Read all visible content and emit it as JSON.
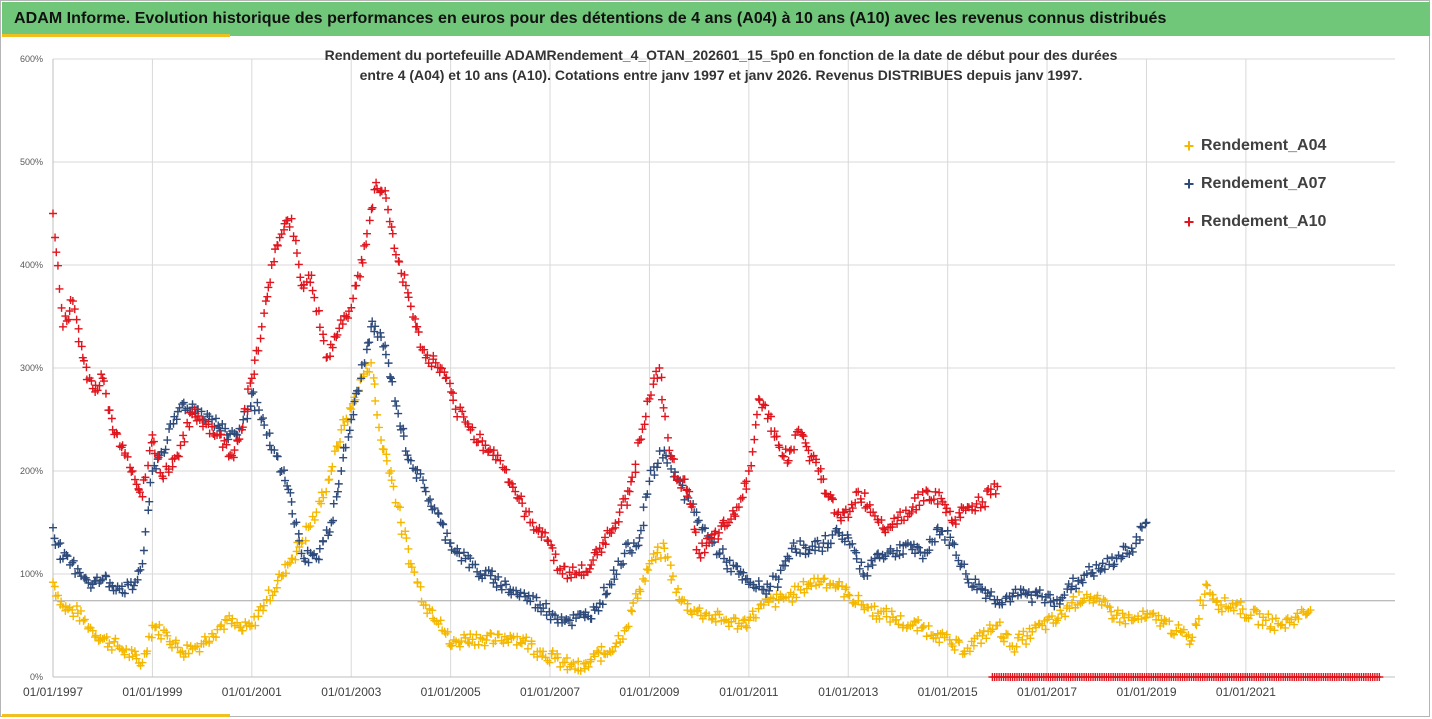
{
  "header": {
    "title": "ADAM Informe. Evolution historique des performances en euros pour des détentions de 4 ans (A04) à 10 ans (A10) avec les revenus connus distribués"
  },
  "colors": {
    "title_bar": "#70c77a",
    "accent": "#f0c020",
    "grid": "#d9d9d9",
    "reference_line": "#a6a6a6"
  },
  "chart_data": {
    "type": "scatter",
    "title_line1": "Rendement du portefeuille ADAMRendement_4_OTAN_202601_15_5p0  en fonction de la date de début pour des durées",
    "title_line2": "entre 4 (A04) et 10 ans (A10). Cotations entre janv 1997 et janv 2026. Revenus DISTRIBUES depuis janv 1997.",
    "xlabel": "",
    "ylabel": "",
    "xlim": [
      1997.0,
      2024.0
    ],
    "ylim": [
      0,
      600
    ],
    "y_ticks": [
      0,
      100,
      200,
      300,
      400,
      500,
      600
    ],
    "y_tick_labels": [
      "0%",
      "100%",
      "200%",
      "300%",
      "400%",
      "500%",
      "600%"
    ],
    "x_tick_values": [
      1997,
      1999,
      2001,
      2003,
      2005,
      2007,
      2009,
      2011,
      2013,
      2015,
      2017,
      2019,
      2021
    ],
    "x_tick_labels": [
      "01/01/1997",
      "01/01/1999",
      "01/01/2001",
      "01/01/2003",
      "01/01/2005",
      "01/01/2007",
      "01/01/2009",
      "01/01/2011",
      "01/01/2013",
      "01/01/2015",
      "01/01/2017",
      "01/01/2019",
      "01/01/2021"
    ],
    "reference_y": 74,
    "grid": true,
    "legend_position": "right",
    "marker": "+",
    "series": [
      {
        "name": "Rendement_A04",
        "color": "#f5b800",
        "x": [
          1997.0,
          1997.2,
          1997.5,
          1997.8,
          1998.0,
          1998.3,
          1998.6,
          1998.8,
          1999.0,
          1999.3,
          1999.6,
          1999.9,
          2000.2,
          2000.5,
          2000.8,
          2001.0,
          2001.3,
          2001.6,
          2001.8,
          2002.0,
          2002.3,
          2002.6,
          2002.8,
          2003.0,
          2003.2,
          2003.4,
          2003.6,
          2003.8,
          2004.0,
          2004.2,
          2004.5,
          2004.8,
          2005.0,
          2005.3,
          2005.6,
          2005.9,
          2006.2,
          2006.5,
          2006.8,
          2007.1,
          2007.4,
          2007.7,
          2007.9,
          2008.2,
          2008.5,
          2008.8,
          2009.0,
          2009.3,
          2009.6,
          2009.9,
          2010.2,
          2010.5,
          2010.8,
          2011.0,
          2011.3,
          2011.6,
          2011.9,
          2012.2,
          2012.5,
          2012.8,
          2013.0,
          2013.3,
          2013.6,
          2013.9,
          2014.2,
          2014.5,
          2014.8,
          2015.1,
          2015.4,
          2015.7,
          2016.0,
          2016.3,
          2016.6,
          2016.9,
          2017.2,
          2017.5,
          2017.8,
          2018.1,
          2018.4,
          2018.7,
          2019.0,
          2019.3,
          2019.6,
          2019.9,
          2020.2,
          2020.5,
          2020.8,
          2021.1,
          2021.4,
          2021.7,
          2022.0,
          2022.3
        ],
        "y": [
          92,
          68,
          62,
          45,
          37,
          30,
          20,
          14,
          50,
          40,
          25,
          30,
          42,
          55,
          45,
          50,
          75,
          98,
          115,
          130,
          160,
          200,
          240,
          260,
          290,
          305,
          230,
          200,
          150,
          110,
          70,
          55,
          30,
          38,
          38,
          35,
          40,
          35,
          25,
          18,
          10,
          8,
          20,
          25,
          45,
          85,
          110,
          125,
          75,
          65,
          60,
          55,
          52,
          55,
          70,
          75,
          80,
          90,
          95,
          88,
          80,
          70,
          62,
          58,
          50,
          48,
          42,
          30,
          28,
          40,
          50,
          30,
          40,
          50,
          55,
          72,
          80,
          70,
          60,
          55,
          58,
          55,
          45,
          35,
          90,
          70,
          70,
          60,
          55,
          50,
          58,
          65
        ]
      },
      {
        "name": "Rendement_A07",
        "color": "#2e4a7a",
        "x": [
          1997.0,
          1997.2,
          1997.5,
          1997.8,
          1998.0,
          1998.3,
          1998.6,
          1998.8,
          1999.0,
          1999.3,
          1999.6,
          1999.9,
          2000.2,
          2000.5,
          2000.8,
          2001.0,
          2001.3,
          2001.6,
          2001.8,
          2002.0,
          2002.3,
          2002.6,
          2002.8,
          2003.0,
          2003.2,
          2003.4,
          2003.6,
          2003.8,
          2004.0,
          2004.2,
          2004.5,
          2004.8,
          2005.0,
          2005.3,
          2005.6,
          2005.9,
          2006.2,
          2006.5,
          2006.8,
          2007.1,
          2007.4,
          2007.7,
          2007.9,
          2008.2,
          2008.5,
          2008.8,
          2009.0,
          2009.3,
          2009.6,
          2009.9,
          2010.2,
          2010.5,
          2010.8,
          2011.0,
          2011.3,
          2011.6,
          2011.9,
          2012.2,
          2012.5,
          2012.8,
          2013.0,
          2013.3,
          2013.6,
          2013.9,
          2014.2,
          2014.5,
          2014.8,
          2015.1,
          2015.4,
          2015.7,
          2016.0,
          2016.3,
          2016.6,
          2016.9,
          2017.2,
          2017.5,
          2017.8,
          2018.1,
          2018.4,
          2018.7,
          2019.0
        ],
        "y": [
          145,
          115,
          105,
          90,
          95,
          88,
          85,
          110,
          200,
          230,
          265,
          260,
          250,
          235,
          240,
          275,
          235,
          200,
          170,
          120,
          115,
          150,
          200,
          250,
          290,
          340,
          330,
          290,
          240,
          210,
          180,
          150,
          130,
          115,
          100,
          95,
          85,
          78,
          70,
          60,
          55,
          58,
          65,
          90,
          120,
          135,
          190,
          220,
          190,
          160,
          135,
          115,
          100,
          90,
          85,
          95,
          130,
          120,
          130,
          140,
          135,
          100,
          120,
          120,
          130,
          115,
          145,
          130,
          95,
          85,
          75,
          78,
          80,
          78,
          75,
          88,
          100,
          105,
          115,
          125,
          150
        ]
      },
      {
        "name": "Rendement_A10",
        "color": "#e0151d",
        "x": [
          1997.0,
          1997.2,
          1997.4,
          1997.6,
          1997.8,
          1998.0,
          1998.2,
          1998.4,
          1998.6,
          1998.8,
          1999.0,
          1999.2,
          1999.5,
          1999.8,
          2000.0,
          2000.3,
          2000.6,
          2000.8,
          2001.0,
          2001.2,
          2001.4,
          2001.6,
          2001.8,
          2002.0,
          2002.2,
          2002.5,
          2002.7,
          2002.9,
          2003.1,
          2003.3,
          2003.5,
          2003.7,
          2003.9,
          2004.1,
          2004.3,
          2004.5,
          2004.7,
          2004.9,
          2005.1,
          2005.4,
          2005.7,
          2006.0,
          2006.3,
          2006.6,
          2006.9,
          2007.2,
          2007.5,
          2007.8,
          2008.0,
          2008.2,
          2008.4,
          2008.6,
          2008.8,
          2009.0,
          2009.2,
          2009.4,
          2009.6,
          2009.8,
          2010.0,
          2010.2,
          2010.4,
          2010.6,
          2010.8,
          2011.0,
          2011.2,
          2011.4,
          2011.6,
          2011.8,
          2012.0,
          2012.2,
          2012.4,
          2012.6,
          2012.8,
          2013.0,
          2013.2,
          2013.5,
          2013.8,
          2014.0,
          2014.3,
          2014.6,
          2014.9,
          2015.1,
          2015.4,
          2015.7,
          2016.0
        ],
        "y": [
          450,
          340,
          365,
          310,
          280,
          290,
          240,
          225,
          200,
          175,
          235,
          195,
          215,
          255,
          250,
          235,
          215,
          240,
          290,
          340,
          400,
          430,
          445,
          380,
          390,
          310,
          330,
          350,
          380,
          420,
          480,
          465,
          410,
          380,
          340,
          310,
          305,
          290,
          260,
          240,
          225,
          210,
          180,
          150,
          140,
          105,
          100,
          105,
          125,
          140,
          160,
          180,
          230,
          270,
          300,
          220,
          190,
          180,
          120,
          130,
          140,
          150,
          165,
          200,
          270,
          255,
          225,
          210,
          240,
          220,
          200,
          175,
          160,
          155,
          180,
          160,
          145,
          155,
          165,
          180,
          170,
          150,
          165,
          170,
          185
        ]
      }
    ],
    "zero_band": {
      "from": 2015.9,
      "to": 2023.7,
      "series": "Rendement_A10"
    }
  }
}
